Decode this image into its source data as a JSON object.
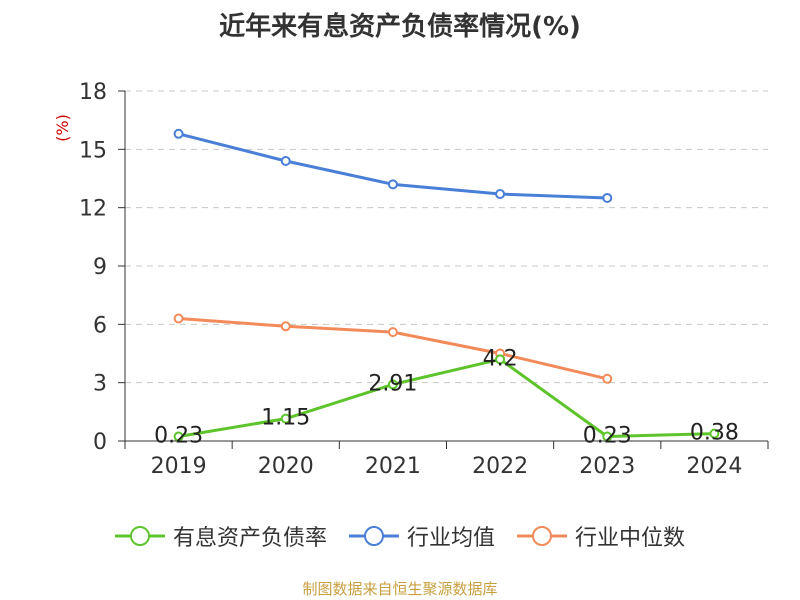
{
  "title": "近年来有息资产负债率情况(%)",
  "source": "制图数据来自恒生聚源数据库",
  "colors": {
    "series1": "#5ec42b",
    "series2": "#4a7fd8",
    "series3": "#f28a59",
    "ylabel": "#cc0000"
  },
  "chart_data": {
    "type": "line",
    "title": "近年来有息资产负债率情况(%)",
    "ylabel": "(%)",
    "xlabel": "",
    "ylim": [
      0,
      18
    ],
    "yticks": [
      0,
      3,
      6,
      9,
      12,
      15,
      18
    ],
    "grid": true,
    "legend_position": "bottom",
    "categories": [
      "2019",
      "2020",
      "2021",
      "2022",
      "2023",
      "2024"
    ],
    "series": [
      {
        "name": "有息资产负债率",
        "values": [
          0.23,
          1.15,
          2.91,
          4.2,
          0.23,
          0.38
        ],
        "labels": [
          "0.23",
          "1.15",
          "2.91",
          "4.2",
          "0.23",
          "0.38"
        ]
      },
      {
        "name": "行业均值",
        "values": [
          15.8,
          14.4,
          13.2,
          12.7,
          12.5,
          null
        ]
      },
      {
        "name": "行业中位数",
        "values": [
          6.3,
          5.9,
          5.6,
          4.5,
          3.2,
          null
        ]
      }
    ]
  }
}
